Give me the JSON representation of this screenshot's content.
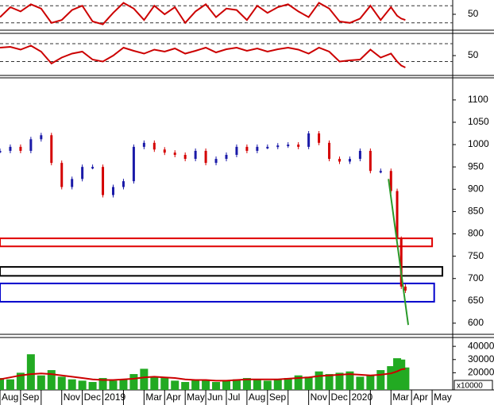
{
  "chart_data": {
    "type": "stock",
    "x": [
      0,
      0.5,
      1,
      1.5,
      2,
      2.5,
      3,
      3.5,
      4,
      4.5,
      5,
      5.5,
      6,
      6.5,
      7,
      7.5,
      8,
      8.5,
      9,
      9.5,
      10,
      10.5,
      11,
      11.5,
      12,
      12.5,
      13,
      13.5,
      14,
      14.5,
      15,
      15.5,
      16,
      16.5,
      17,
      17.5,
      18,
      18.5,
      19,
      19.3,
      19.5,
      19.7
    ],
    "xlim": [
      0,
      22
    ],
    "categories": [
      "Aug",
      "Sep",
      null,
      "Nov",
      "Dec",
      "2019",
      null,
      "Mar",
      "Apr",
      "May",
      "Jun",
      "Jul",
      "Aug",
      "Sep",
      null,
      "Nov",
      "Dec",
      "2020",
      null,
      "Mar",
      "Apr",
      "May"
    ],
    "oscillators": [
      {
        "color": "#cc0000",
        "ylim": [
          0,
          100
        ],
        "yticks": [
          50
        ],
        "levels": [
          80,
          20
        ],
        "values": [
          40,
          75,
          60,
          85,
          70,
          20,
          30,
          65,
          80,
          25,
          15,
          55,
          90,
          70,
          30,
          80,
          50,
          75,
          20,
          60,
          85,
          40,
          70,
          65,
          30,
          80,
          55,
          75,
          85,
          60,
          40,
          90,
          70,
          25,
          20,
          35,
          80,
          30,
          75,
          45,
          35,
          30
        ]
      },
      {
        "color": "#cc0000",
        "ylim": [
          0,
          100
        ],
        "yticks": [
          50
        ],
        "levels": [
          80,
          35
        ],
        "values": [
          70,
          72,
          65,
          75,
          60,
          30,
          45,
          55,
          60,
          40,
          35,
          50,
          70,
          62,
          55,
          65,
          60,
          68,
          55,
          62,
          70,
          58,
          66,
          70,
          62,
          68,
          60,
          66,
          70,
          65,
          55,
          70,
          60,
          35,
          38,
          40,
          65,
          45,
          55,
          35,
          25,
          20
        ]
      }
    ],
    "price": {
      "up_color": "#1a1aa8",
      "down_color": "#d40000",
      "ylim": [
        575,
        1146
      ],
      "yticks": [
        600,
        650,
        700,
        750,
        800,
        850,
        900,
        950,
        1000,
        1050,
        1100
      ],
      "values": [
        986,
        995,
        986,
        1012,
        1021,
        959,
        905,
        923,
        950,
        950,
        887,
        905,
        918,
        995,
        1004,
        989,
        982,
        977,
        968,
        986,
        959,
        968,
        977,
        995,
        986,
        995,
        995,
        998,
        1000,
        995,
        1025,
        1004,
        968,
        962,
        968,
        986,
        941,
        941,
        896,
        789,
        682,
        673
      ],
      "zones": [
        {
          "top": 790,
          "bottom": 772,
          "color": "#e00000",
          "x_end": 21
        },
        {
          "top": 726,
          "bottom": 706,
          "color": "#000000",
          "x_end": 21.5
        },
        {
          "top": 689,
          "bottom": 648,
          "color": "#0000cc",
          "x_end": 21.1
        }
      ],
      "trendline": {
        "x": [
          18.88,
          19.84
        ],
        "y": [
          923,
          596
        ],
        "color": "#2a9a2a"
      }
    },
    "volume": {
      "color": "#22aa22",
      "ma_color": "#cc0000",
      "ylim": [
        7000,
        45500
      ],
      "yticks": [
        20000,
        30000,
        40000
      ],
      "unit_label": "x10000",
      "values": [
        16000,
        15000,
        20000,
        34000,
        18000,
        22000,
        17000,
        15000,
        14000,
        13000,
        16000,
        14000,
        15000,
        19000,
        23000,
        17000,
        16000,
        14000,
        13000,
        15000,
        14000,
        13000,
        14000,
        15000,
        16000,
        15000,
        14000,
        15000,
        16000,
        18000,
        17000,
        21000,
        19000,
        20000,
        21000,
        17000,
        18000,
        22000,
        25000,
        31000,
        30000,
        24000
      ],
      "ma": [
        15000,
        16500,
        18000,
        19000,
        19500,
        19000,
        18000,
        17000,
        16000,
        15000,
        14500,
        14500,
        15000,
        15500,
        16500,
        17000,
        16500,
        16000,
        15000,
        14500,
        14500,
        14000,
        14000,
        14500,
        15000,
        15000,
        15000,
        15000,
        15500,
        16000,
        16500,
        17500,
        18000,
        18500,
        19000,
        18500,
        18000,
        18500,
        19500,
        21000,
        22500,
        23000
      ]
    }
  }
}
